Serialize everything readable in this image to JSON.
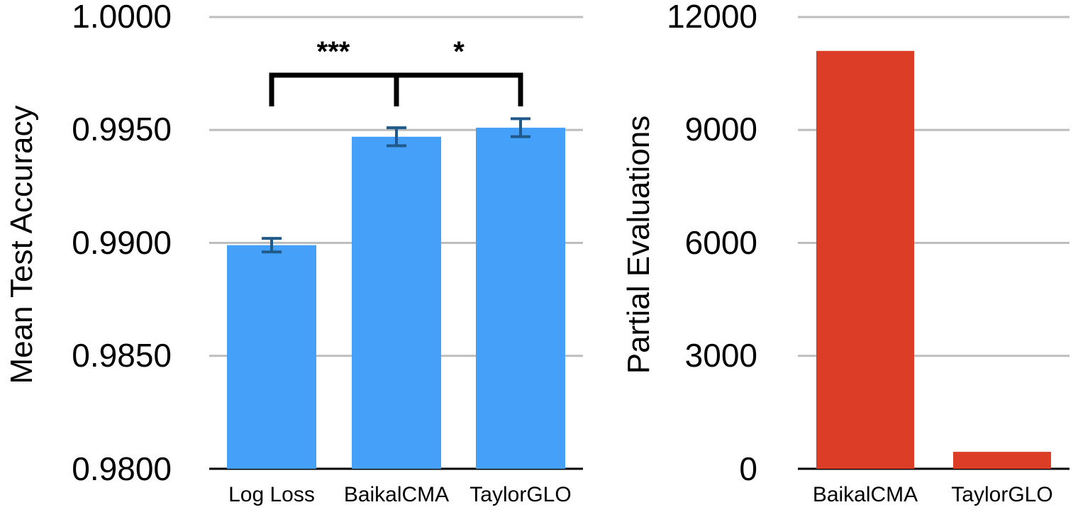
{
  "chart_data": [
    {
      "type": "bar",
      "categories": [
        "Log Loss",
        "BaikalCMA",
        "TaylorGLO"
      ],
      "values": [
        0.9899,
        0.9947,
        0.9951
      ],
      "error": [
        0.0003,
        0.0004,
        0.0004
      ],
      "title": "",
      "xlabel": "",
      "ylabel": "Mean Test Accuracy",
      "ylim": [
        0.98,
        1.0
      ],
      "yticks": [
        "1.0000",
        "0.9950",
        "0.9900",
        "0.9850",
        "0.9800"
      ],
      "grid": true,
      "bar_color": "#44a0f8",
      "error_color": "#1f5a8a",
      "significance": [
        {
          "from": "Log Loss",
          "to": "BaikalCMA",
          "label": "***"
        },
        {
          "from": "BaikalCMA",
          "to": "TaylorGLO",
          "label": "*"
        }
      ]
    },
    {
      "type": "bar",
      "categories": [
        "BaikalCMA",
        "TaylorGLO"
      ],
      "values": [
        11100,
        450
      ],
      "title": "",
      "xlabel": "",
      "ylabel": "Partial Evaluations",
      "ylim": [
        0,
        12000
      ],
      "yticks": [
        "12000",
        "9000",
        "6000",
        "3000",
        "0"
      ],
      "grid": true,
      "bar_color": "#dc3d26"
    }
  ]
}
